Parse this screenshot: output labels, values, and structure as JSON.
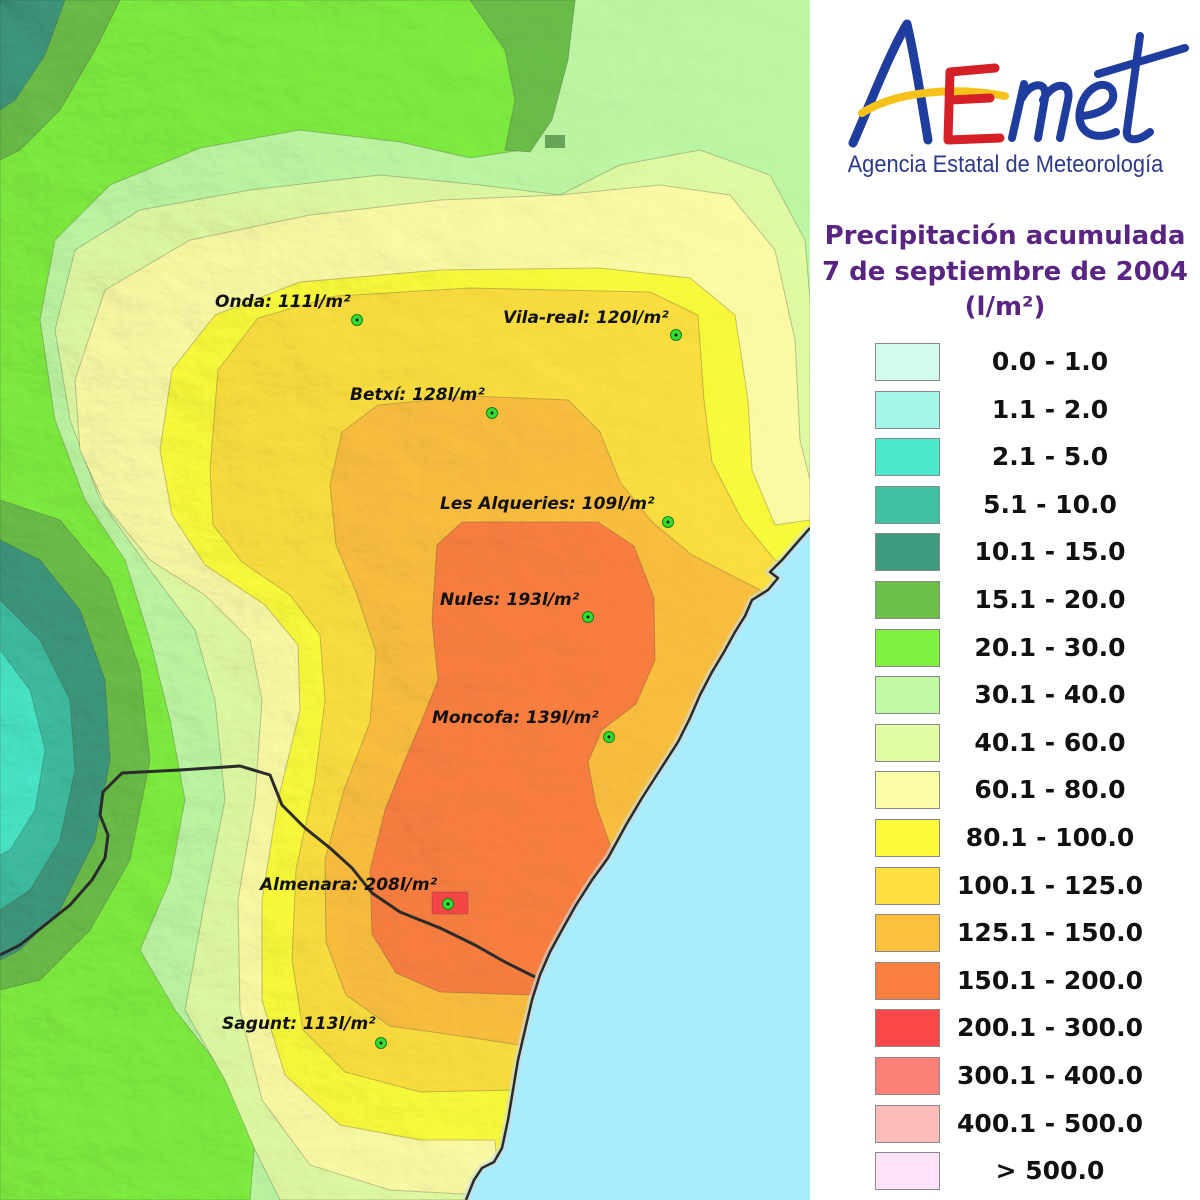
{
  "logo": {
    "text": "AEmet",
    "subtitle": "Agencia Estatal de Meteorología",
    "colors": {
      "blue": "#1f3d9e",
      "yellow": "#f4c21a",
      "red": "#d42026"
    }
  },
  "title": {
    "line1": "Precipitación acumulada",
    "line2": "7 de septiembre de 2004",
    "line3": "(l/m²)"
  },
  "legend": {
    "items": [
      {
        "label": "0.0 - 1.0",
        "color": "#d2fbef"
      },
      {
        "label": "1.1 - 2.0",
        "color": "#a2f7ea"
      },
      {
        "label": "2.1 - 5.0",
        "color": "#49e9c9"
      },
      {
        "label": "5.1 - 10.0",
        "color": "#3fc0a2"
      },
      {
        "label": "10.1 - 15.0",
        "color": "#3e9a7e"
      },
      {
        "label": "15.1 - 20.0",
        "color": "#6cc04a"
      },
      {
        "label": "20.1 - 30.0",
        "color": "#80f040"
      },
      {
        "label": "30.1 - 40.0",
        "color": "#bff9a4"
      },
      {
        "label": "40.1 - 60.0",
        "color": "#e2fca4"
      },
      {
        "label": "60.1 - 80.0",
        "color": "#fdfca6"
      },
      {
        "label": "80.1 - 100.0",
        "color": "#fcfc3c"
      },
      {
        "label": "100.1 - 125.0",
        "color": "#fde03f"
      },
      {
        "label": "125.1 - 150.0",
        "color": "#fcc03f"
      },
      {
        "label": "150.1 - 200.0",
        "color": "#fb8040"
      },
      {
        "label": "200.1 - 300.0",
        "color": "#fb4747"
      },
      {
        "label": "300.1 - 400.0",
        "color": "#fb8078"
      },
      {
        "label": "400.1 - 500.0",
        "color": "#fcbcb7"
      },
      {
        "label": "> 500.0",
        "color": "#fde2f8"
      }
    ]
  },
  "map": {
    "stations": [
      {
        "label": "Onda: 111l/m²"
      },
      {
        "label": "Vila-real: 120l/m²"
      },
      {
        "label": "Betxí: 128l/m²"
      },
      {
        "label": "Les Alqueries: 109l/m²"
      },
      {
        "label": "Nules: 193l/m²"
      },
      {
        "label": "Moncofa: 139l/m²"
      },
      {
        "label": "Almenara: 208l/m²"
      },
      {
        "label": "Sagunt: 113l/m²"
      }
    ],
    "colors": {
      "sea": "#a9ecfb",
      "boundary": "#2b2b2b",
      "marker": "#2fe02f"
    }
  },
  "colors": {
    "title": "#5a2483",
    "subtitle": "#2d3a8c",
    "legend_text": "#111111"
  }
}
